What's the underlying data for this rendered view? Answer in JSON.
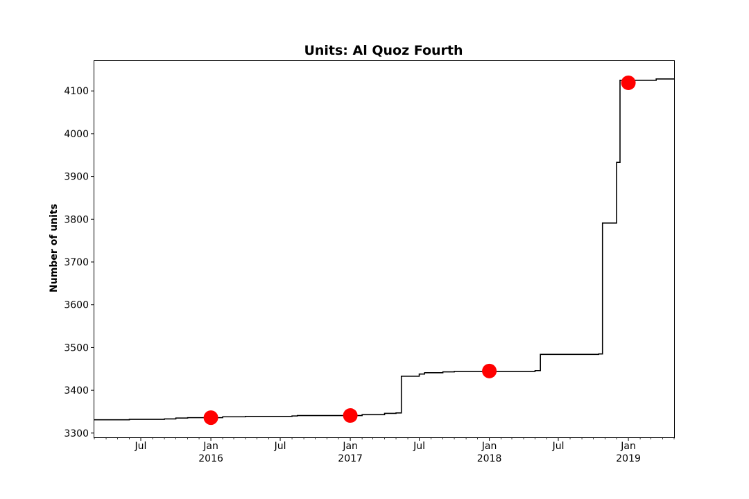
{
  "chart_data": {
    "type": "line",
    "title": "Units: Al Quoz Fourth",
    "xlabel": "",
    "ylabel": "Number of units",
    "xlim": [
      "2015-03-01",
      "2019-05-01"
    ],
    "ylim": [
      3290,
      4170
    ],
    "y_ticks": [
      3300,
      3400,
      3500,
      3600,
      3700,
      3800,
      3900,
      4000,
      4100
    ],
    "x_ticks": [
      {
        "date": "2015-07-01",
        "label": "Jul",
        "sublabel": ""
      },
      {
        "date": "2016-01-01",
        "label": "Jan",
        "sublabel": "2016"
      },
      {
        "date": "2016-07-01",
        "label": "Jul",
        "sublabel": ""
      },
      {
        "date": "2017-01-01",
        "label": "Jan",
        "sublabel": "2017"
      },
      {
        "date": "2017-07-01",
        "label": "Jul",
        "sublabel": ""
      },
      {
        "date": "2018-01-01",
        "label": "Jan",
        "sublabel": "2018"
      },
      {
        "date": "2018-07-01",
        "label": "Jul",
        "sublabel": ""
      },
      {
        "date": "2019-01-01",
        "label": "Jan",
        "sublabel": "2019"
      }
    ],
    "grid": false,
    "series": [
      {
        "name": "",
        "color": "#000000",
        "step": true,
        "points": [
          [
            "2015-03-01",
            3331
          ],
          [
            "2015-06-01",
            3332
          ],
          [
            "2015-09-01",
            3333
          ],
          [
            "2015-10-01",
            3335
          ],
          [
            "2015-11-01",
            3336
          ],
          [
            "2016-02-01",
            3338
          ],
          [
            "2016-04-01",
            3339
          ],
          [
            "2016-08-01",
            3340
          ],
          [
            "2016-08-15",
            3341
          ],
          [
            "2017-02-01",
            3343
          ],
          [
            "2017-04-01",
            3346
          ],
          [
            "2017-05-01",
            3347
          ],
          [
            "2017-05-15",
            3433
          ],
          [
            "2017-07-01",
            3438
          ],
          [
            "2017-07-15",
            3441
          ],
          [
            "2017-09-01",
            3443
          ],
          [
            "2017-10-01",
            3444
          ],
          [
            "2018-05-01",
            3446
          ],
          [
            "2018-05-15",
            3484
          ],
          [
            "2018-10-15",
            3485
          ],
          [
            "2018-10-25",
            3791
          ],
          [
            "2018-12-01",
            3933
          ],
          [
            "2018-12-10",
            4125
          ],
          [
            "2019-03-15",
            4128
          ],
          [
            "2019-05-01",
            4128
          ]
        ]
      },
      {
        "name": "",
        "type": "scatter",
        "color": "#ff0000",
        "points": [
          [
            "2016-01-01",
            3336
          ],
          [
            "2017-01-01",
            3341
          ],
          [
            "2018-01-01",
            3445
          ],
          [
            "2019-01-01",
            4119
          ]
        ]
      }
    ]
  }
}
